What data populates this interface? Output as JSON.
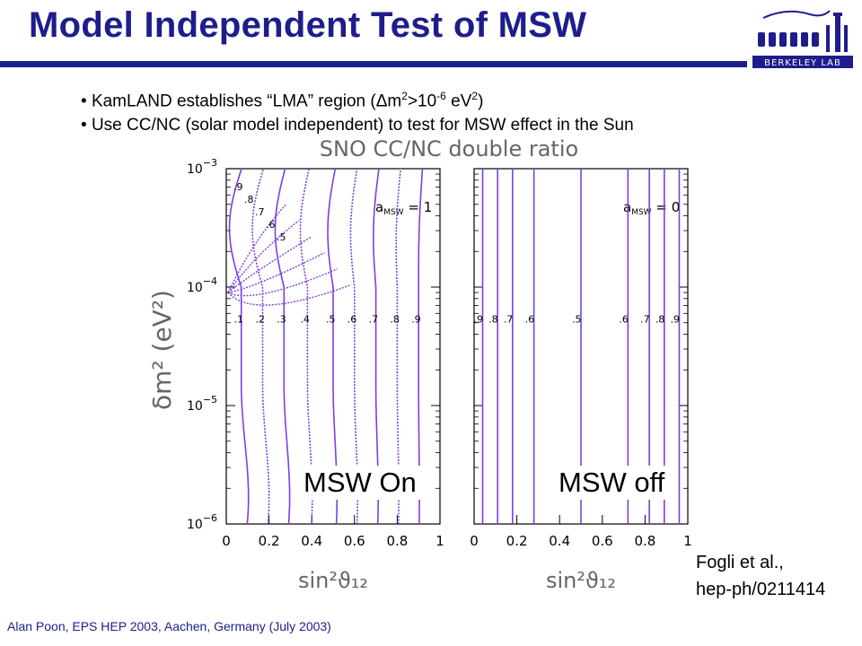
{
  "slide": {
    "title": "Model Independent Test of MSW",
    "bullets": [
      {
        "pre": "KamLAND establishes “LMA” region (Δm",
        "sup1": "2",
        "mid": ">10",
        "sup2": "-6",
        "mid2": " eV",
        "sup3": "2",
        "post": ")"
      },
      {
        "text": "Use CC/NC (solar model independent) to test for MSW effect in the Sun"
      }
    ],
    "overlay_on": "MSW On",
    "overlay_off": "MSW off",
    "citation_line1": "Fogli et al.,",
    "citation_line2": "hep-ph/0211414",
    "footer": "Alan Poon, EPS HEP 2003, Aachen, Germany (July 2003)",
    "logo_text": "BERKELEY LAB",
    "colors": {
      "title": "#1d1d8c",
      "contour": "#7b3fe0"
    }
  },
  "chart_data": {
    "type": "line",
    "title": "SNO  CC/NC  double ratio",
    "ylabel": "δm²  (eV²)",
    "y_scale": "log",
    "ylim": [
      1e-06,
      0.001
    ],
    "y_ticks": [
      {
        "value": 0.001,
        "base": "10",
        "exp": "−3"
      },
      {
        "value": 0.0001,
        "base": "10",
        "exp": "−4"
      },
      {
        "value": 1e-05,
        "base": "10",
        "exp": "−5"
      },
      {
        "value": 1e-06,
        "base": "10",
        "exp": "−6"
      }
    ],
    "panels": [
      {
        "name": "MSW on",
        "annotation": "a_MSW = 1",
        "annotation_main": "a",
        "annotation_sub": "MSW",
        "annotation_rest": " = 1",
        "xlabel": "sin²ϑ₁₂",
        "xlim": [
          0,
          1
        ],
        "x_ticks": [
          "0",
          "0.2",
          "0.4",
          "0.6",
          "0.8",
          "1"
        ],
        "contour_levels": [
          ".1",
          ".2",
          ".3",
          ".4",
          ".5",
          ".6",
          ".7",
          ".8",
          ".9"
        ],
        "contour_x_at_label": [
          0.07,
          0.17,
          0.27,
          0.38,
          0.5,
          0.6,
          0.7,
          0.8,
          0.9
        ],
        "upper_labels": [
          ".9",
          ".8",
          ".7",
          ".6",
          ".5"
        ]
      },
      {
        "name": "MSW off",
        "annotation": "a_MSW = 0",
        "annotation_main": "a",
        "annotation_sub": "MSW",
        "annotation_rest": " = 0",
        "xlabel": "sin²ϑ₁₂",
        "xlim": [
          0,
          1
        ],
        "x_ticks": [
          "0",
          "0.2",
          "0.4",
          "0.6",
          "0.8",
          "1"
        ],
        "contour_levels": [
          ".9",
          ".8",
          ".7",
          ".6",
          ".5",
          ".6",
          ".7",
          ".8",
          ".9"
        ],
        "contour_x": [
          0.04,
          0.11,
          0.18,
          0.28,
          0.5,
          0.72,
          0.82,
          0.89,
          0.96
        ]
      }
    ]
  }
}
